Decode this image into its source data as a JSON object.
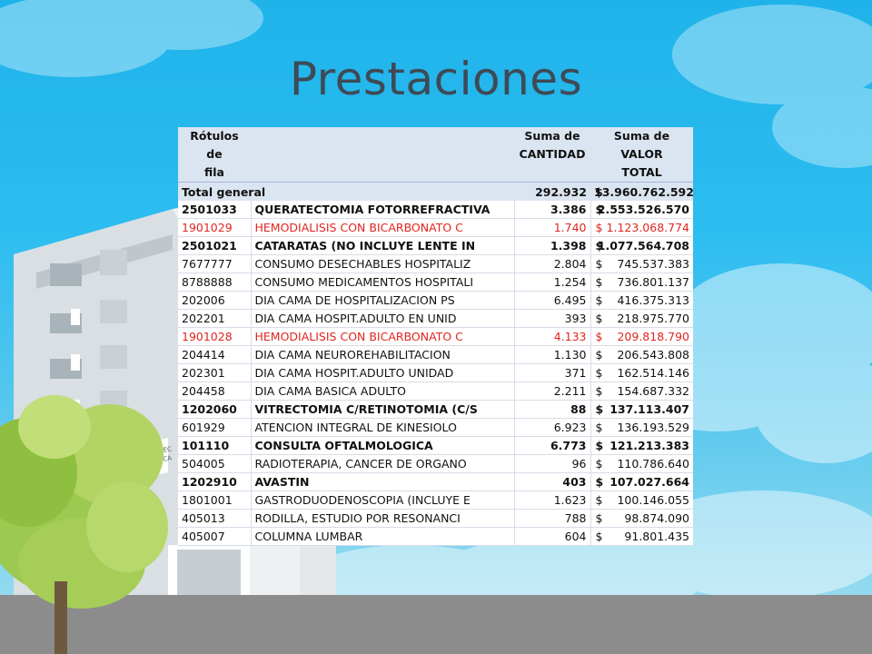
{
  "slide": {
    "title": "Prestaciones"
  },
  "table": {
    "headers": {
      "row_labels": [
        "Rótulos de",
        "fila"
      ],
      "quantity": [
        "Suma de",
        "CANTIDAD"
      ],
      "value": [
        "Suma de VALOR",
        "TOTAL"
      ]
    },
    "total": {
      "label": "Total general",
      "quantity": "292.932",
      "currency": "$",
      "value": "13.960.762.592"
    },
    "rows": [
      {
        "code": "2501033",
        "description": "QUERATECTOMIA FOTORREFRACTIVA",
        "quantity": "3.386",
        "currency": "$",
        "value": "2.553.526.570",
        "style": "bold"
      },
      {
        "code": "1901029",
        "description": "HEMODIALISIS CON BICARBONATO C",
        "quantity": "1.740",
        "currency": "$",
        "value": "1.123.068.774",
        "style": "red"
      },
      {
        "code": "2501021",
        "description": "CATARATAS (NO INCLUYE LENTE IN",
        "quantity": "1.398",
        "currency": "$",
        "value": "1.077.564.708",
        "style": "bold"
      },
      {
        "code": "7677777",
        "description": "CONSUMO DESECHABLES HOSPITALIZ",
        "quantity": "2.804",
        "currency": "$",
        "value": "745.537.383",
        "style": "normal"
      },
      {
        "code": "8788888",
        "description": "CONSUMO MEDICAMENTOS HOSPITALI",
        "quantity": "1.254",
        "currency": "$",
        "value": "736.801.137",
        "style": "normal"
      },
      {
        "code": "202006",
        "description": "DIA CAMA DE HOSPITALIZACION PS",
        "quantity": "6.495",
        "currency": "$",
        "value": "416.375.313",
        "style": "normal"
      },
      {
        "code": "202201",
        "description": "DIA CAMA HOSPIT.ADULTO EN UNID",
        "quantity": "393",
        "currency": "$",
        "value": "218.975.770",
        "style": "normal"
      },
      {
        "code": "1901028",
        "description": "HEMODIALISIS CON BICARBONATO C",
        "quantity": "4.133",
        "currency": "$",
        "value": "209.818.790",
        "style": "red"
      },
      {
        "code": "204414",
        "description": "DIA CAMA NEUROREHABILITACION",
        "quantity": "1.130",
        "currency": "$",
        "value": "206.543.808",
        "style": "normal"
      },
      {
        "code": "202301",
        "description": "DIA CAMA HOSPIT.ADULTO UNIDAD",
        "quantity": "371",
        "currency": "$",
        "value": "162.514.146",
        "style": "normal"
      },
      {
        "code": "204458",
        "description": "DIA CAMA BASICA ADULTO",
        "quantity": "2.211",
        "currency": "$",
        "value": "154.687.332",
        "style": "normal"
      },
      {
        "code": "1202060",
        "description": "VITRECTOMIA C/RETINOTOMIA (C/S",
        "quantity": "88",
        "currency": "$",
        "value": "137.113.407",
        "style": "bold"
      },
      {
        "code": "601929",
        "description": "ATENCION INTEGRAL DE KINESIOLO",
        "quantity": "6.923",
        "currency": "$",
        "value": "136.193.529",
        "style": "normal"
      },
      {
        "code": "101110",
        "description": "CONSULTA OFTALMOLOGICA",
        "quantity": "6.773",
        "currency": "$",
        "value": "121.213.383",
        "style": "bold"
      },
      {
        "code": "504005",
        "description": "RADIOTERAPIA, CANCER DE ORGANO",
        "quantity": "96",
        "currency": "$",
        "value": "110.786.640",
        "style": "normal"
      },
      {
        "code": "1202910",
        "description": "AVASTIN",
        "quantity": "403",
        "currency": "$",
        "value": "107.027.664",
        "style": "bold"
      },
      {
        "code": "1801001",
        "description": "GASTRODUODENOSCOPIA (INCLUYE E",
        "quantity": "1.623",
        "currency": "$",
        "value": "100.146.055",
        "style": "normal"
      },
      {
        "code": "405013",
        "description": "RODILLA, ESTUDIO POR RESONANCI",
        "quantity": "788",
        "currency": "$",
        "value": "98.874.090",
        "style": "normal"
      },
      {
        "code": "405007",
        "description": "COLUMNA LUMBAR",
        "quantity": "604",
        "currency": "$",
        "value": "91.801.435",
        "style": "normal"
      }
    ]
  },
  "colors": {
    "header_bg": "#dbe5f1",
    "highlight_red": "#e0261f",
    "title": "#3e4a55"
  },
  "decor": {
    "building_sign": [
      "DIREC",
      "DE CA"
    ]
  }
}
